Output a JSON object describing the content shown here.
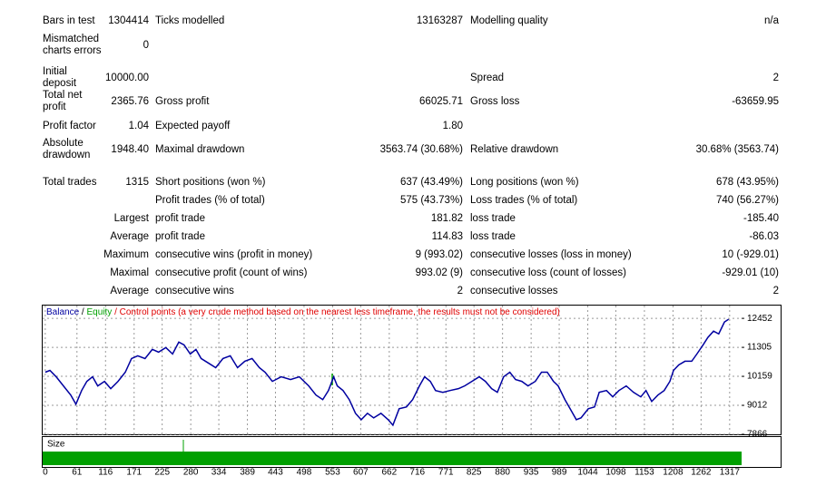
{
  "report": {
    "rows": [
      {
        "label1": "Bars in test",
        "value1": "1304414",
        "label2": "Ticks modelled",
        "value2": "13163287",
        "label3": "Modelling quality",
        "value3": "n/a"
      },
      {
        "label1": "Mismatched charts errors",
        "value1": "0"
      },
      {
        "label1": "Initial deposit",
        "value1": "10000.00",
        "label3": "Spread",
        "value3": "2"
      },
      {
        "label1": "Total net profit",
        "value1": "2365.76",
        "label2": "Gross profit",
        "value2": "66025.71",
        "label3": "Gross loss",
        "value3": "-63659.95"
      },
      {
        "label1": "Profit factor",
        "value1": "1.04",
        "label2": "Expected payoff",
        "value2": "1.80"
      },
      {
        "label1": "Absolute drawdown",
        "value1": "1948.40",
        "label2": "Maximal drawdown",
        "value2": "3563.74 (30.68%)",
        "label3": "Relative drawdown",
        "value3": "30.68% (3563.74)"
      },
      {
        "label1": "Total trades",
        "value1": "1315",
        "label2": "Short positions (won %)",
        "value2": "637 (43.49%)",
        "label3": "Long positions (won %)",
        "value3": "678 (43.95%)"
      },
      {
        "label2": "Profit trades (% of total)",
        "value2": "575 (43.73%)",
        "label3": "Loss trades (% of total)",
        "value3": "740 (56.27%)"
      },
      {
        "value1": "Largest",
        "label2": "profit trade",
        "value2": "181.82",
        "label3": "loss trade",
        "value3": "-185.40"
      },
      {
        "value1": "Average",
        "label2": "profit trade",
        "value2": "114.83",
        "label3": "loss trade",
        "value3": "-86.03"
      },
      {
        "value1": "Maximum",
        "label2": "consecutive wins (profit in money)",
        "value2": "9 (993.02)",
        "label3": "consecutive losses (loss in money)",
        "value3": "10 (-929.01)"
      },
      {
        "value1": "Maximal",
        "label2": "consecutive profit (count of wins)",
        "value2": "993.02 (9)",
        "label3": "consecutive loss (count of losses)",
        "value3": "-929.01 (10)"
      },
      {
        "value1": "Average",
        "label2": "consecutive wins",
        "value2": "2",
        "label3": "consecutive losses",
        "value3": "2"
      }
    ]
  },
  "chart_data": {
    "type": "line",
    "legend": {
      "separator": "/",
      "equity": "Equity",
      "equity_color": "#00a000",
      "control_points": "Control points (a very crude method based on the nearest less timeframe, the results must not be considered)",
      "control_color": "#e00000"
    },
    "x": [
      0,
      9,
      21,
      35,
      49,
      59,
      70,
      80,
      91,
      101,
      114,
      126,
      140,
      154,
      166,
      178,
      192,
      206,
      218,
      232,
      245,
      257,
      267,
      279,
      290,
      300,
      314,
      328,
      342,
      356,
      370,
      384,
      398,
      412,
      423,
      437,
      454,
      472,
      489,
      507,
      521,
      534,
      545,
      555,
      562,
      573,
      585,
      597,
      608,
      620,
      632,
      646,
      660,
      669,
      681,
      695,
      707,
      720,
      730,
      741,
      751,
      765,
      779,
      795,
      807,
      821,
      835,
      847,
      859,
      870,
      882,
      894,
      905,
      917,
      929,
      943,
      955,
      966,
      978,
      987,
      1000,
      1010,
      1022,
      1031,
      1045,
      1057,
      1066,
      1080,
      1092,
      1104,
      1118,
      1132,
      1146,
      1156,
      1167,
      1179,
      1191,
      1202,
      1209,
      1219,
      1231,
      1244,
      1254,
      1266,
      1275,
      1286,
      1296,
      1307,
      1315
    ],
    "series": [
      {
        "name": "Balance",
        "color": "#0000a0",
        "values": [
          10322,
          10394,
          10141,
          9780,
          9419,
          9058,
          9599,
          9960,
          10141,
          9780,
          9960,
          9671,
          9960,
          10322,
          10863,
          10971,
          10863,
          11224,
          11116,
          11296,
          11044,
          11513,
          11405,
          11044,
          11224,
          10863,
          10683,
          10502,
          10863,
          10971,
          10502,
          10755,
          10863,
          10502,
          10322,
          9960,
          10141,
          10033,
          10141,
          9780,
          9419,
          9238,
          9599,
          10141,
          9780,
          9599,
          9238,
          8697,
          8444,
          8697,
          8516,
          8697,
          8444,
          8227,
          8877,
          8949,
          9238,
          9780,
          10141,
          9960,
          9599,
          9527,
          9599,
          9671,
          9780,
          9960,
          10141,
          9960,
          9671,
          9527,
          10141,
          10322,
          10033,
          9960,
          9780,
          9960,
          10322,
          10322,
          9960,
          9780,
          9238,
          8877,
          8444,
          8516,
          8877,
          8949,
          9527,
          9599,
          9347,
          9599,
          9780,
          9527,
          9347,
          9599,
          9166,
          9419,
          9599,
          9960,
          10394,
          10610,
          10755,
          10755,
          11044,
          11405,
          11694,
          11946,
          11838,
          12308,
          12416
        ]
      }
    ],
    "xlim": [
      -5,
      1340
    ],
    "ylim": [
      7866,
      12958
    ],
    "xticks": [
      0,
      61,
      116,
      171,
      225,
      280,
      334,
      389,
      443,
      498,
      553,
      607,
      662,
      716,
      771,
      825,
      880,
      935,
      989,
      1044,
      1098,
      1153,
      1208,
      1262,
      1317
    ],
    "yticks": [
      7866,
      9012,
      10159,
      11305,
      12452
    ],
    "grid": true,
    "size_panel": {
      "label": "Size",
      "color": "#00a000"
    }
  }
}
